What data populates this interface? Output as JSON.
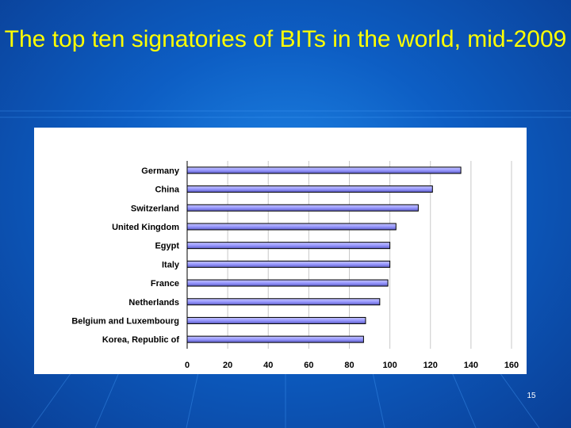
{
  "slide": {
    "title": "The top ten signatories of BITs in the world, mid-2009",
    "page_number": "15"
  },
  "chart_data": {
    "type": "bar",
    "orientation": "horizontal",
    "title": "The top ten signatories of BITs in the world, mid-2009",
    "xlabel": "",
    "ylabel": "",
    "xlim": [
      0,
      160
    ],
    "xticks": [
      0,
      20,
      40,
      60,
      80,
      100,
      120,
      140,
      160
    ],
    "grid": true,
    "bar_color": "#9999ff",
    "categories": [
      "Germany",
      "China",
      "Switzerland",
      "United Kingdom",
      "Egypt",
      "Italy",
      "France",
      "Netherlands",
      "Belgium and Luxembourg",
      "Korea, Republic of"
    ],
    "values": [
      135,
      121,
      114,
      103,
      100,
      100,
      99,
      95,
      88,
      87
    ]
  }
}
